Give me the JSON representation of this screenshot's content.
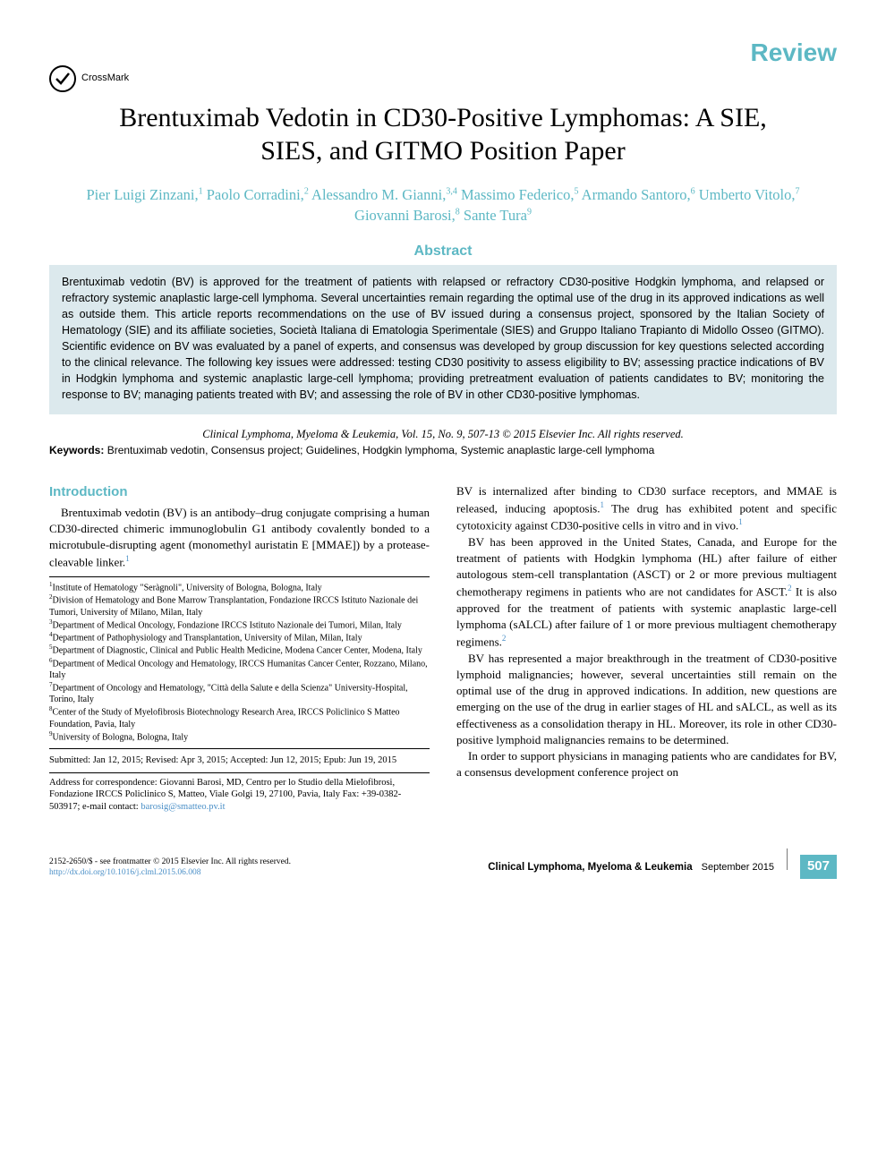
{
  "header": {
    "review_label": "Review",
    "crossmark_text": "CrossMark"
  },
  "title": "Brentuximab Vedotin in CD30-Positive Lymphomas: A SIE, SIES, and GITMO Position Paper",
  "authors_html": "Pier Luigi Zinzani,<sup>1</sup> Paolo Corradini,<sup>2</sup> Alessandro M. Gianni,<sup>3,4</sup> Massimo Federico,<sup>5</sup> Armando Santoro,<sup>6</sup> Umberto Vitolo,<sup>7</sup> Giovanni Barosi,<sup>8</sup> Sante Tura<sup>9</sup>",
  "abstract": {
    "heading": "Abstract",
    "text": "Brentuximab vedotin (BV) is approved for the treatment of patients with relapsed or refractory CD30-positive Hodgkin lymphoma, and relapsed or refractory systemic anaplastic large-cell lymphoma. Several uncertainties remain regarding the optimal use of the drug in its approved indications as well as outside them. This article reports recommendations on the use of BV issued during a consensus project, sponsored by the Italian Society of Hematology (SIE) and its affiliate societies, Società Italiana di Ematologia Sperimentale (SIES) and Gruppo Italiano Trapianto di Midollo Osseo (GITMO). Scientific evidence on BV was evaluated by a panel of experts, and consensus was developed by group discussion for key questions selected according to the clinical relevance. The following key issues were addressed: testing CD30 positivity to assess eligibility to BV; assessing practice indications of BV in Hodgkin lymphoma and systemic anaplastic large-cell lymphoma; providing pretreatment evaluation of patients candidates to BV; monitoring the response to BV; managing patients treated with BV; and assessing the role of BV in other CD30-positive lymphomas."
  },
  "citation": "Clinical Lymphoma, Myeloma & Leukemia, Vol. 15, No. 9, 507-13 © 2015 Elsevier Inc. All rights reserved.",
  "keywords": {
    "label": "Keywords:",
    "text": " Brentuximab vedotin, Consensus project; Guidelines, Hodgkin lymphoma, Systemic anaplastic large-cell lymphoma"
  },
  "introduction": {
    "heading": "Introduction",
    "left_paragraphs": [
      "Brentuximab vedotin (BV) is an antibody–drug conjugate comprising a human CD30-directed chimeric immunoglobulin G1 antibody covalently bonded to a microtubule-disrupting agent (monomethyl auristatin E [MMAE]) by a protease-cleavable linker."
    ],
    "right_paragraphs": [
      "BV is internalized after binding to CD30 surface receptors, and MMAE is released, inducing apoptosis.<sup>1</sup> The drug has exhibited potent and specific cytotoxicity against CD30-positive cells in vitro and in vivo.<sup>1</sup>",
      "BV has been approved in the United States, Canada, and Europe for the treatment of patients with Hodgkin lymphoma (HL) after failure of either autologous stem-cell transplantation (ASCT) or 2 or more previous multiagent chemotherapy regimens in patients who are not candidates for ASCT.<sup>2</sup> It is also approved for the treatment of patients with systemic anaplastic large-cell lymphoma (sALCL) after failure of 1 or more previous multiagent chemotherapy regimens.<sup>2</sup>",
      "BV has represented a major breakthrough in the treatment of CD30-positive lymphoid malignancies; however, several uncertainties still remain on the optimal use of the drug in approved indications. In addition, new questions are emerging on the use of the drug in earlier stages of HL and sALCL, as well as its effectiveness as a consolidation therapy in HL. Moreover, its role in other CD30-positive lymphoid malignancies remains to be determined.",
      "In order to support physicians in managing patients who are candidates for BV, a consensus development conference project on"
    ]
  },
  "affiliations": [
    "Institute of Hematology \"Seràgnoli\", University of Bologna, Bologna, Italy",
    "Division of Hematology and Bone Marrow Transplantation, Fondazione IRCCS Istituto Nazionale dei Tumori, University of Milano, Milan, Italy",
    "Department of Medical Oncology, Fondazione IRCCS Istituto Nazionale dei Tumori, Milan, Italy",
    "Department of Pathophysiology and Transplantation, University of Milan, Milan, Italy",
    "Department of Diagnostic, Clinical and Public Health Medicine, Modena Cancer Center, Modena, Italy",
    "Department of Medical Oncology and Hematology, IRCCS Humanitas Cancer Center, Rozzano, Milano, Italy",
    "Department of Oncology and Hematology, \"Città della Salute e della Scienza\" University-Hospital, Torino, Italy",
    "Center of the Study of Myelofibrosis Biotechnology Research Area, IRCCS Policlinico S Matteo Foundation, Pavia, Italy",
    "University of Bologna, Bologna, Italy"
  ],
  "submitted": "Submitted: Jan 12, 2015; Revised: Apr 3, 2015; Accepted: Jun 12, 2015; Epub: Jun 19, 2015",
  "correspondence": {
    "text": "Address for correspondence: Giovanni Barosi, MD, Centro per lo Studio della Mielofibrosi, Fondazione IRCCS Policlinico S, Matteo, Viale Golgi 19, 27100, Pavia, Italy Fax: +39-0382-503917; e-mail contact: ",
    "email": "barosig@smatteo.pv.it"
  },
  "footer": {
    "left_line1": "2152-2650/$ - see frontmatter © 2015 Elsevier Inc. All rights reserved.",
    "doi": "http://dx.doi.org/10.1016/j.clml.2015.06.008",
    "journal": "Clinical Lymphoma, Myeloma & Leukemia",
    "date": "September 2015",
    "page": "507"
  },
  "colors": {
    "accent": "#5db8c4",
    "abstract_bg": "#dce9ed",
    "link": "#4a8fc7"
  }
}
